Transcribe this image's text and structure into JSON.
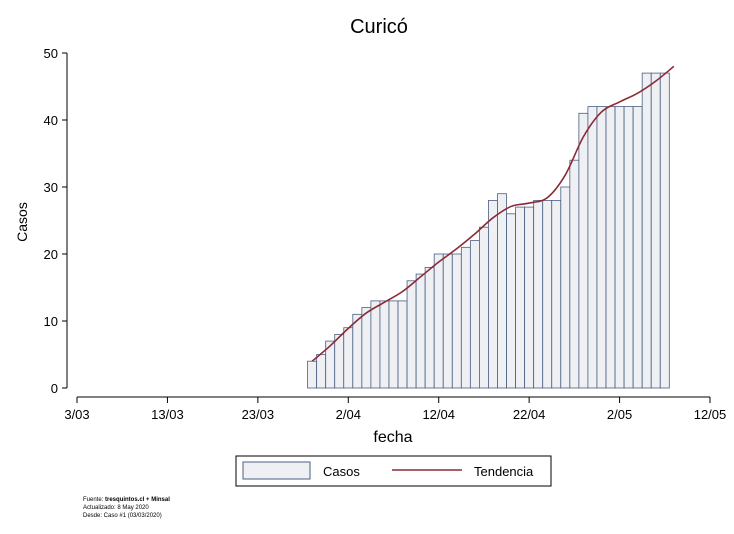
{
  "chart_data": {
    "type": "bar",
    "title": "Curicó",
    "xlabel": "fecha",
    "ylabel": "Casos",
    "ylim": [
      0,
      50
    ],
    "yticks": [
      "0",
      "10",
      "20",
      "30",
      "40",
      "50"
    ],
    "xlim": [
      "2020-03-03",
      "2020-05-12"
    ],
    "xticks": [
      "3/03",
      "13/03",
      "23/03",
      "2/04",
      "12/04",
      "22/04",
      "2/05",
      "12/05"
    ],
    "grid": false,
    "legend_position": "bottom",
    "colors": {
      "bar_fill": "#eef0f4",
      "bar_stroke": "#4a5f82",
      "trend": "#8b2a35"
    },
    "series": [
      {
        "name": "Casos",
        "type": "bar",
        "x": [
          "2020-03-29",
          "2020-03-30",
          "2020-03-31",
          "2020-04-01",
          "2020-04-02",
          "2020-04-03",
          "2020-04-04",
          "2020-04-05",
          "2020-04-06",
          "2020-04-07",
          "2020-04-08",
          "2020-04-09",
          "2020-04-10",
          "2020-04-11",
          "2020-04-12",
          "2020-04-13",
          "2020-04-14",
          "2020-04-15",
          "2020-04-16",
          "2020-04-17",
          "2020-04-18",
          "2020-04-19",
          "2020-04-20",
          "2020-04-21",
          "2020-04-22",
          "2020-04-23",
          "2020-04-24",
          "2020-04-25",
          "2020-04-26",
          "2020-04-27",
          "2020-04-28",
          "2020-04-29",
          "2020-04-30",
          "2020-05-01",
          "2020-05-02",
          "2020-05-03",
          "2020-05-04",
          "2020-05-05",
          "2020-05-06",
          "2020-05-07"
        ],
        "values": [
          4,
          5,
          7,
          8,
          9,
          11,
          12,
          13,
          13,
          13,
          13,
          16,
          17,
          18,
          20,
          20,
          20,
          21,
          22,
          24,
          28,
          29,
          26,
          27,
          27,
          28,
          28,
          28,
          30,
          34,
          41,
          42,
          42,
          42,
          42,
          42,
          42,
          47,
          47,
          47
        ]
      },
      {
        "name": "Tendencia",
        "type": "line",
        "x": [
          "2020-03-29",
          "2020-03-31",
          "2020-04-02",
          "2020-04-04",
          "2020-04-06",
          "2020-04-08",
          "2020-04-10",
          "2020-04-12",
          "2020-04-14",
          "2020-04-16",
          "2020-04-18",
          "2020-04-20",
          "2020-04-22",
          "2020-04-24",
          "2020-04-26",
          "2020-04-28",
          "2020-04-30",
          "2020-05-02",
          "2020-05-04",
          "2020-05-06",
          "2020-05-08"
        ],
        "values": [
          4,
          6.3,
          8.9,
          11.2,
          12.8,
          14.4,
          16.6,
          18.8,
          20.8,
          23.0,
          25.4,
          27.1,
          27.6,
          28.4,
          31.8,
          37.5,
          41.2,
          42.7,
          44.0,
          45.8,
          48.0
        ]
      }
    ]
  },
  "footer": {
    "source_prefix": "Fuente: ",
    "source_bold": "tresquintos.cl + Minsal",
    "updated": "Actualizado: 8 May 2020",
    "since": "Desde: Caso #1  (03/03/2020)"
  }
}
